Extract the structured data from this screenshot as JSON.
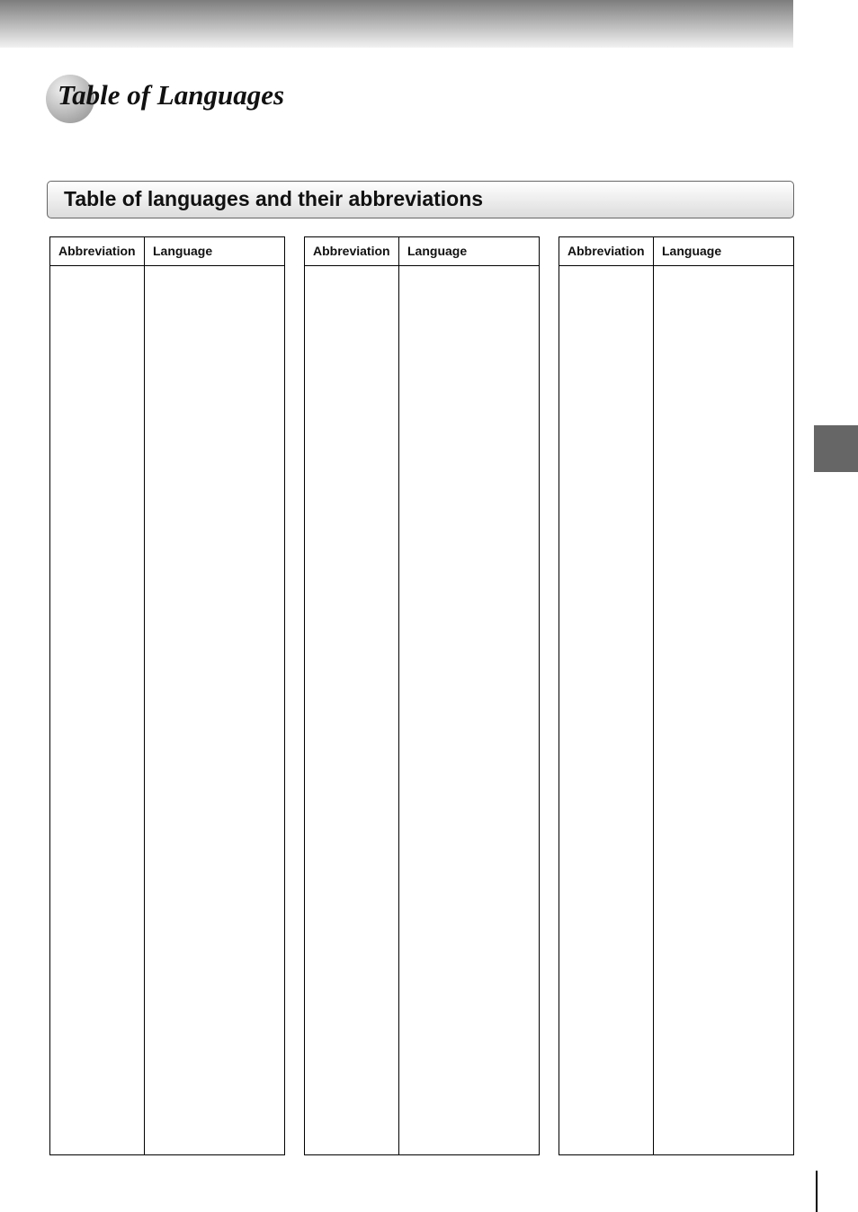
{
  "header": {
    "title": "Table of Languages"
  },
  "section": {
    "heading": "Table of languages and their abbreviations"
  },
  "tables": [
    {
      "headers": [
        "Abbreviation",
        "Language"
      ]
    },
    {
      "headers": [
        "Abbreviation",
        "Language"
      ]
    },
    {
      "headers": [
        "Abbreviation",
        "Language"
      ]
    }
  ]
}
